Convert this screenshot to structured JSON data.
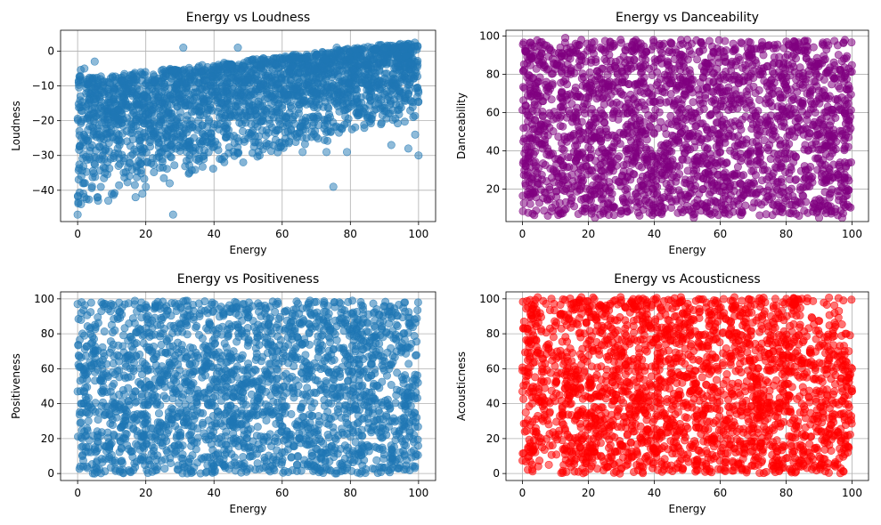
{
  "chart_data": [
    {
      "type": "scatter",
      "title": "Energy vs Loudness",
      "xlabel": "Energy",
      "ylabel": "Loudness",
      "xlim": [
        -5,
        105
      ],
      "ylim": [
        -49,
        6
      ],
      "xticks": [
        0,
        20,
        40,
        60,
        80,
        100
      ],
      "yticks": [
        0,
        -10,
        -20,
        -30,
        -40
      ],
      "color": "#1f77b4",
      "alpha": 0.5,
      "grid": true,
      "dense_region": {
        "description": "upward band",
        "x": [
          0,
          100
        ],
        "y_lower_at_x0": -45,
        "y_upper_at_x0": -8,
        "y_lower_at_x100": -20,
        "y_upper_at_x100": 3
      },
      "sample_points": [
        {
          "x": 0,
          "y": -47
        },
        {
          "x": 1,
          "y": -44
        },
        {
          "x": 2,
          "y": -42
        },
        {
          "x": 6,
          "y": -43
        },
        {
          "x": 9,
          "y": -43
        },
        {
          "x": 8,
          "y": -35
        },
        {
          "x": 12,
          "y": -33
        },
        {
          "x": 16,
          "y": -34
        },
        {
          "x": 17,
          "y": -42
        },
        {
          "x": 19,
          "y": -41
        },
        {
          "x": 20,
          "y": -39
        },
        {
          "x": 27,
          "y": -38
        },
        {
          "x": 28,
          "y": -47
        },
        {
          "x": 32,
          "y": -29
        },
        {
          "x": 37,
          "y": -31
        },
        {
          "x": 38,
          "y": -26
        },
        {
          "x": 41,
          "y": -27
        },
        {
          "x": 62,
          "y": -26
        },
        {
          "x": 66,
          "y": -29
        },
        {
          "x": 75,
          "y": -39
        },
        {
          "x": 73,
          "y": -29
        },
        {
          "x": 79,
          "y": -29
        },
        {
          "x": 92,
          "y": -27
        },
        {
          "x": 97,
          "y": -28
        },
        {
          "x": 99,
          "y": -24
        },
        {
          "x": 100,
          "y": -30
        },
        {
          "x": 31,
          "y": 1
        },
        {
          "x": 76,
          "y": 1
        },
        {
          "x": 47,
          "y": 1
        },
        {
          "x": 90,
          "y": 1
        },
        {
          "x": 2,
          "y": -5
        },
        {
          "x": 5,
          "y": -3
        }
      ]
    },
    {
      "type": "scatter",
      "title": "Energy vs Danceability",
      "xlabel": "Energy",
      "ylabel": "Danceability",
      "xlim": [
        -5,
        105
      ],
      "ylim": [
        3,
        103
      ],
      "xticks": [
        0,
        20,
        40,
        60,
        80,
        100
      ],
      "yticks": [
        20,
        40,
        60,
        80,
        100
      ],
      "color": "#800080",
      "alpha": 0.5,
      "grid": true,
      "dense_region": {
        "description": "filled rectangle",
        "x": [
          0,
          100
        ],
        "y": [
          6,
          98
        ]
      },
      "sample_points": [
        {
          "x": 1,
          "y": 92
        },
        {
          "x": 3,
          "y": 78
        },
        {
          "x": 6,
          "y": 86
        },
        {
          "x": 13,
          "y": 99
        },
        {
          "x": 22,
          "y": 5
        },
        {
          "x": 52,
          "y": 5
        },
        {
          "x": 90,
          "y": 5
        },
        {
          "x": 97,
          "y": 5
        },
        {
          "x": 99,
          "y": 83
        },
        {
          "x": 50,
          "y": 98
        }
      ]
    },
    {
      "type": "scatter",
      "title": "Energy vs Positiveness",
      "xlabel": "Energy",
      "ylabel": "Positiveness",
      "xlim": [
        -5,
        105
      ],
      "ylim": [
        -4,
        104
      ],
      "xticks": [
        0,
        20,
        40,
        60,
        80,
        100
      ],
      "yticks": [
        0,
        20,
        40,
        60,
        80,
        100
      ],
      "color": "#1f77b4",
      "alpha": 0.5,
      "grid": true,
      "dense_region": {
        "description": "filled rectangle",
        "x": [
          0,
          100
        ],
        "y": [
          0,
          99
        ]
      },
      "sample_points": [
        {
          "x": 0,
          "y": 97
        },
        {
          "x": 1,
          "y": 88
        },
        {
          "x": 2,
          "y": 79
        },
        {
          "x": 4,
          "y": 62
        },
        {
          "x": 7,
          "y": 98
        },
        {
          "x": 10,
          "y": 85
        },
        {
          "x": 13,
          "y": 95
        },
        {
          "x": 0,
          "y": 47
        },
        {
          "x": 2,
          "y": 24
        },
        {
          "x": 5,
          "y": 0
        }
      ]
    },
    {
      "type": "scatter",
      "title": "Energy vs Acousticness",
      "xlabel": "Energy",
      "ylabel": "Acousticness",
      "xlim": [
        -5,
        105
      ],
      "ylim": [
        -4,
        104
      ],
      "xticks": [
        0,
        20,
        40,
        60,
        80,
        100
      ],
      "yticks": [
        0,
        20,
        40,
        60,
        80,
        100
      ],
      "color": "#ff0000",
      "alpha": 0.5,
      "grid": true,
      "dense_region": {
        "description": "filled rectangle thinning at high energy",
        "x": [
          0,
          100
        ],
        "y": [
          0,
          101
        ]
      },
      "sample_points": [
        {
          "x": 0,
          "y": 59
        },
        {
          "x": 0,
          "y": 47
        },
        {
          "x": 1,
          "y": 35
        },
        {
          "x": 2,
          "y": 10
        },
        {
          "x": 4,
          "y": 26
        },
        {
          "x": 6,
          "y": 15
        },
        {
          "x": 8,
          "y": 5
        },
        {
          "x": 10,
          "y": 22
        },
        {
          "x": 96,
          "y": 93
        },
        {
          "x": 98,
          "y": 80
        },
        {
          "x": 99,
          "y": 70
        },
        {
          "x": 95,
          "y": 85
        },
        {
          "x": 100,
          "y": 60
        }
      ]
    }
  ]
}
